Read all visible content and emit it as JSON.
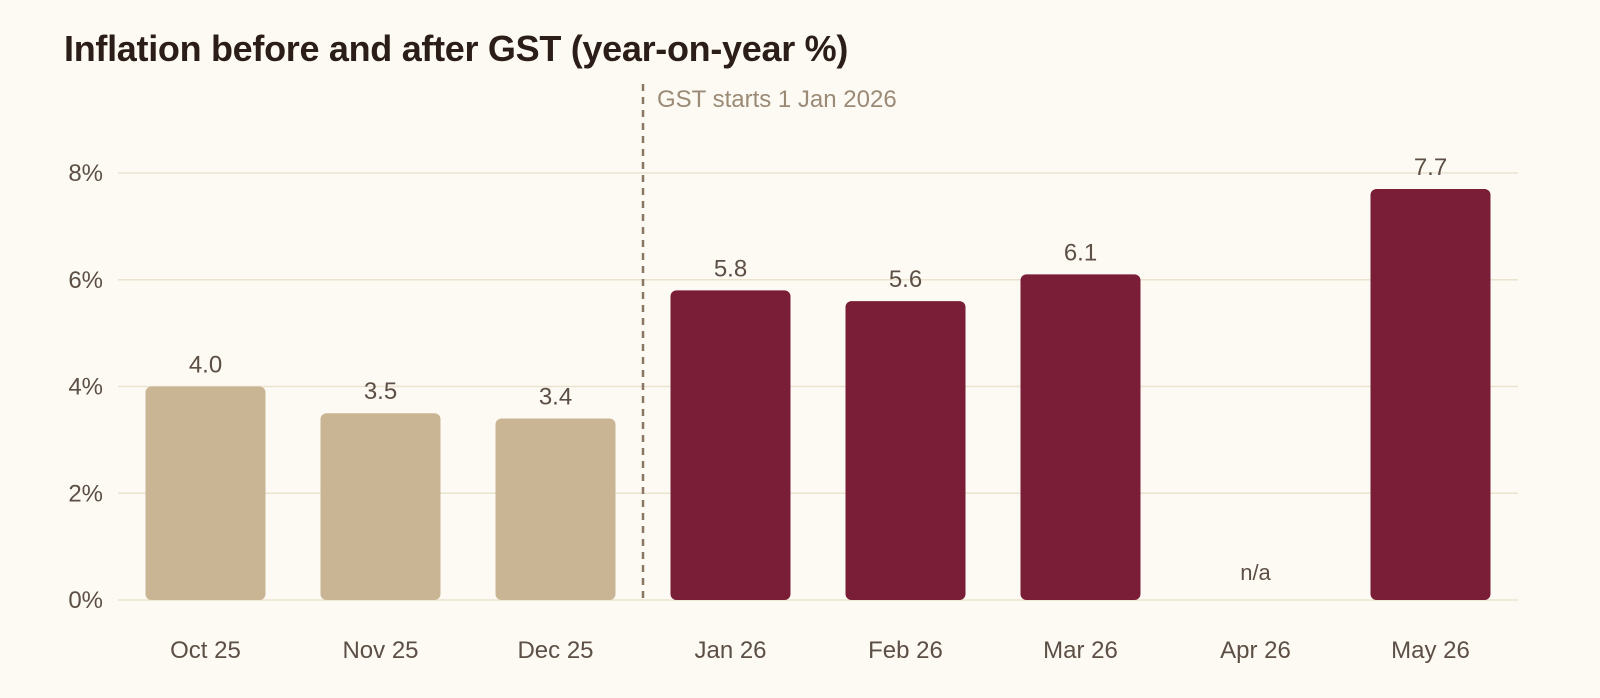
{
  "chart_data": {
    "type": "bar",
    "title": "Inflation before and after GST (year-on-year %)",
    "xlabel": "",
    "ylabel": "",
    "categories": [
      "Oct 25",
      "Nov 25",
      "Dec 25",
      "Jan 26",
      "Feb 26",
      "Mar 26",
      "Apr 26",
      "May 26"
    ],
    "values": [
      4.0,
      3.5,
      3.4,
      5.8,
      5.6,
      6.1,
      null,
      7.7
    ],
    "value_labels": [
      "4.0",
      "3.5",
      "3.4",
      "5.8",
      "5.6",
      "6.1",
      "n/a",
      "7.7"
    ],
    "period": [
      "before",
      "before",
      "before",
      "after",
      "after",
      "after",
      "after",
      "after"
    ],
    "ylim": [
      0,
      8
    ],
    "yticks": [
      0,
      2,
      4,
      6,
      8
    ],
    "ytick_labels": [
      "0%",
      "2%",
      "4%",
      "6%",
      "8%"
    ],
    "grid": true,
    "annotation": {
      "text": "GST starts 1 Jan 2026",
      "between_categories": [
        "Dec 25",
        "Jan 26"
      ]
    },
    "colors": {
      "before": "#c9b594",
      "after": "#7a1e38",
      "gridline": "#ebe2cf",
      "marker_line": "#8a7763",
      "annotation_text": "#9a8a76",
      "value_label": "#5c4f45",
      "tick_label": "#5c4f45",
      "title": "#2b1d17",
      "background": "#fdfaf3"
    }
  }
}
